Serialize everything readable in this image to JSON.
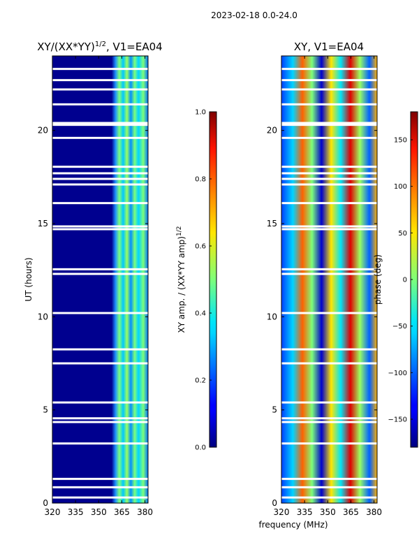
{
  "chart_data": {
    "type": "heatmap",
    "suptitle": "2023-02-18 0.0-24.0",
    "xlabel": "frequency (MHz)",
    "ylabel": "UT (hours)",
    "x_range": [
      320,
      382
    ],
    "y_range": [
      0,
      24
    ],
    "x_ticks": [
      320,
      335,
      350,
      365,
      380
    ],
    "y_ticks": [
      0,
      5,
      10,
      15,
      20
    ],
    "panels": [
      {
        "title": "XY/(XX*YY)",
        "title_exponent": "1/2",
        "title_suffix": ", V1=EA04",
        "colorbar": {
          "label": "XY amp. / (XX*YY amp)",
          "label_exponent": "1/2",
          "range": [
            0.0,
            1.0
          ],
          "ticks": [
            "0.0",
            "0.2",
            "0.4",
            "0.6",
            "0.8",
            "1.0"
          ]
        }
      },
      {
        "title": "XY, V1=EA04",
        "colorbar": {
          "label": "phase (deg)",
          "range": [
            -180,
            180
          ],
          "ticks": [
            "-150",
            "-100",
            "-50",
            "0",
            "50",
            "100",
            "150"
          ]
        }
      }
    ],
    "gap_hours": [
      0.3,
      0.85,
      1.3,
      3.2,
      4.35,
      4.55,
      5.4,
      7.5,
      8.25,
      10.2,
      12.3,
      12.55,
      14.7,
      14.85,
      16.1,
      17.1,
      17.4,
      17.7,
      18.05,
      19.6,
      20.3,
      20.4,
      21.4,
      22.2,
      22.7,
      23.3
    ]
  }
}
